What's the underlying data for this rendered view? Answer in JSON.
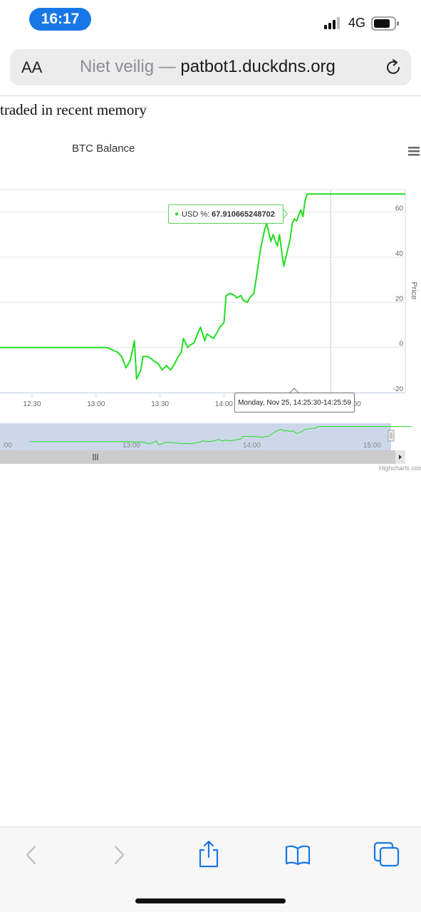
{
  "status_bar": {
    "time": "16:17",
    "network": "4G",
    "icons": [
      "signal-bars-icon",
      "battery-icon"
    ]
  },
  "browser": {
    "text_size_label": "AA",
    "url_insecure_label": "Niet veilig —",
    "url_domain": "patbot1.duckdns.org",
    "reload_icon": "reload-icon"
  },
  "page": {
    "partial_heading": "traded in recent memory"
  },
  "chart_data": {
    "type": "line",
    "title": "BTC Balance",
    "ylabel": "Price",
    "ylim": [
      -20,
      70
    ],
    "y_ticks": [
      "-20",
      "0",
      "20",
      "40",
      "60"
    ],
    "x_ticks": [
      "12:30",
      "13:00",
      "13:30",
      "14:00",
      "15:00"
    ],
    "x_range_minutes": [
      735,
      925
    ],
    "series": [
      {
        "name": "USD %",
        "color": "#22dd22",
        "x": [
          735,
          785,
          790,
          792,
          794,
          796,
          798,
          799,
          801,
          802,
          804,
          806,
          807,
          809,
          811,
          813,
          815,
          817,
          818,
          820,
          821,
          823,
          824,
          826,
          828,
          829,
          831,
          832,
          835,
          837,
          838,
          840,
          841,
          843,
          845,
          846,
          848,
          849,
          851,
          852,
          854,
          855,
          857,
          859,
          860,
          862,
          863,
          865,
          866,
          868,
          869,
          871,
          872,
          873,
          874,
          876,
          877,
          878,
          879,
          925
        ],
        "y": [
          0,
          0,
          -2,
          -4,
          -9,
          -6,
          3,
          -14,
          -10,
          -4,
          -4,
          -5,
          -6,
          -7,
          -10,
          -8,
          -10,
          -7,
          -5,
          -2,
          4,
          0,
          1,
          2,
          7,
          9,
          3,
          6,
          4,
          7,
          9,
          11,
          23,
          24,
          23,
          22,
          23,
          21,
          20,
          22,
          24,
          30,
          43,
          52,
          55,
          47,
          50,
          45,
          50,
          36,
          40,
          48,
          55,
          57,
          56,
          61,
          58,
          65,
          68,
          68
        ]
      }
    ],
    "tooltip": {
      "series_label": "USD %:",
      "value": "67.910665248702",
      "crosshair_time": "Monday, Nov 25, 14:25:30-14:25:59",
      "crosshair_x": 890
    },
    "navigator": {
      "x_ticks": [
        ":00",
        "13:00",
        "14:00",
        "15:00"
      ]
    },
    "credits": "Highcharts.com"
  },
  "toolbar": {
    "icons": [
      "back-icon",
      "forward-icon",
      "share-icon",
      "bookmarks-icon",
      "tabs-icon"
    ]
  }
}
